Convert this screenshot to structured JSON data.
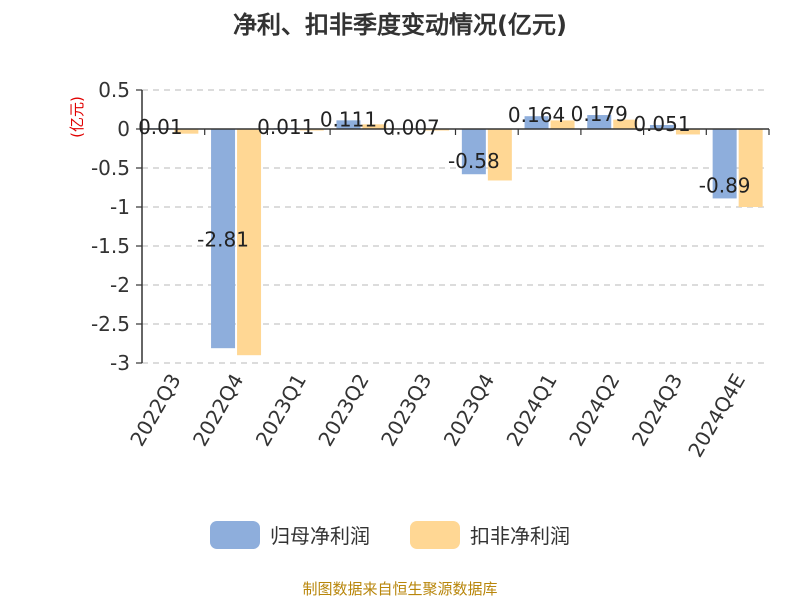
{
  "chart_data": {
    "type": "bar",
    "title": "净利、扣非季度变动情况(亿元)",
    "unit_label": "(亿元)",
    "categories": [
      "2022Q3",
      "2022Q4",
      "2023Q1",
      "2023Q2",
      "2023Q3",
      "2023Q4",
      "2024Q1",
      "2024Q2",
      "2024Q3",
      "2024Q4E"
    ],
    "series": [
      {
        "name": "归母净利润",
        "color": "#8eaedc",
        "values": [
          0.01,
          -2.81,
          0.011,
          0.111,
          0.007,
          -0.58,
          0.164,
          0.179,
          0.051,
          -0.89
        ],
        "labels": [
          "0.01",
          "-2.81",
          "0.011",
          "0.111",
          "0.007",
          "-0.58",
          "0.164",
          "0.179",
          "0.051",
          "-0.89"
        ]
      },
      {
        "name": "扣非净利润",
        "color": "#ffd794",
        "values": [
          -0.06,
          -2.9,
          -0.02,
          0.06,
          -0.02,
          -0.66,
          0.11,
          0.12,
          -0.07,
          -1.0
        ]
      }
    ],
    "ylim": [
      -3,
      0.5
    ],
    "yticks": [
      0.5,
      0,
      -0.5,
      -1,
      -1.5,
      -2,
      -2.5,
      -3
    ],
    "ytick_labels": [
      "0.5",
      "0",
      "-0.5",
      "-1",
      "-1.5",
      "-2",
      "-2.5",
      "-3"
    ],
    "grid": true,
    "legend_position": "bottom"
  },
  "footer": "制图数据来自恒生聚源数据库"
}
